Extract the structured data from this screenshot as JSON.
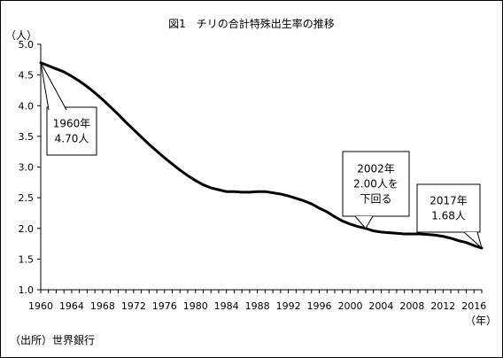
{
  "chart_data": {
    "type": "line",
    "title": "図1　チリの合計特殊出生率の推移",
    "ylabel": "（人）",
    "xlabel": "（年）",
    "source": "（出所）世界銀行",
    "ylim": [
      1.0,
      5.0
    ],
    "xlim": [
      1960,
      2017
    ],
    "y_ticks": [
      "1.0",
      "1.5",
      "2.0",
      "2.5",
      "3.0",
      "3.5",
      "4.0",
      "4.5",
      "5.0"
    ],
    "x_ticks": [
      "1960",
      "1964",
      "1968",
      "1972",
      "1976",
      "1980",
      "1984",
      "1988",
      "1992",
      "1996",
      "2000",
      "2004",
      "2008",
      "2012",
      "2016"
    ],
    "grid": false,
    "series": [
      {
        "x": [
          1960,
          1961,
          1962,
          1963,
          1964,
          1965,
          1966,
          1967,
          1968,
          1969,
          1970,
          1971,
          1972,
          1973,
          1974,
          1975,
          1976,
          1977,
          1978,
          1979,
          1980,
          1981,
          1982,
          1983,
          1984,
          1985,
          1986,
          1987,
          1988,
          1989,
          1990,
          1991,
          1992,
          1993,
          1994,
          1995,
          1996,
          1997,
          1998,
          1999,
          2000,
          2001,
          2002,
          2003,
          2004,
          2005,
          2006,
          2007,
          2008,
          2009,
          2010,
          2011,
          2012,
          2013,
          2014,
          2015,
          2016,
          2017
        ],
        "values": [
          4.7,
          4.65,
          4.6,
          4.55,
          4.48,
          4.4,
          4.31,
          4.21,
          4.1,
          3.98,
          3.86,
          3.73,
          3.61,
          3.49,
          3.37,
          3.26,
          3.15,
          3.05,
          2.95,
          2.86,
          2.78,
          2.71,
          2.66,
          2.63,
          2.6,
          2.6,
          2.59,
          2.59,
          2.6,
          2.6,
          2.58,
          2.56,
          2.53,
          2.49,
          2.45,
          2.4,
          2.33,
          2.27,
          2.19,
          2.12,
          2.07,
          2.03,
          2.0,
          1.96,
          1.94,
          1.93,
          1.92,
          1.91,
          1.91,
          1.91,
          1.9,
          1.89,
          1.87,
          1.84,
          1.8,
          1.77,
          1.72,
          1.68
        ]
      }
    ],
    "annotations": [
      {
        "text": [
          "1960年",
          "4.70人"
        ],
        "x": 1960,
        "y": 4.7
      },
      {
        "text": [
          "2002年",
          "2.00人を",
          "下回る"
        ],
        "x": 2002,
        "y": 2.0
      },
      {
        "text": [
          "2017年",
          "1.68人"
        ],
        "x": 2017,
        "y": 1.68
      }
    ]
  }
}
